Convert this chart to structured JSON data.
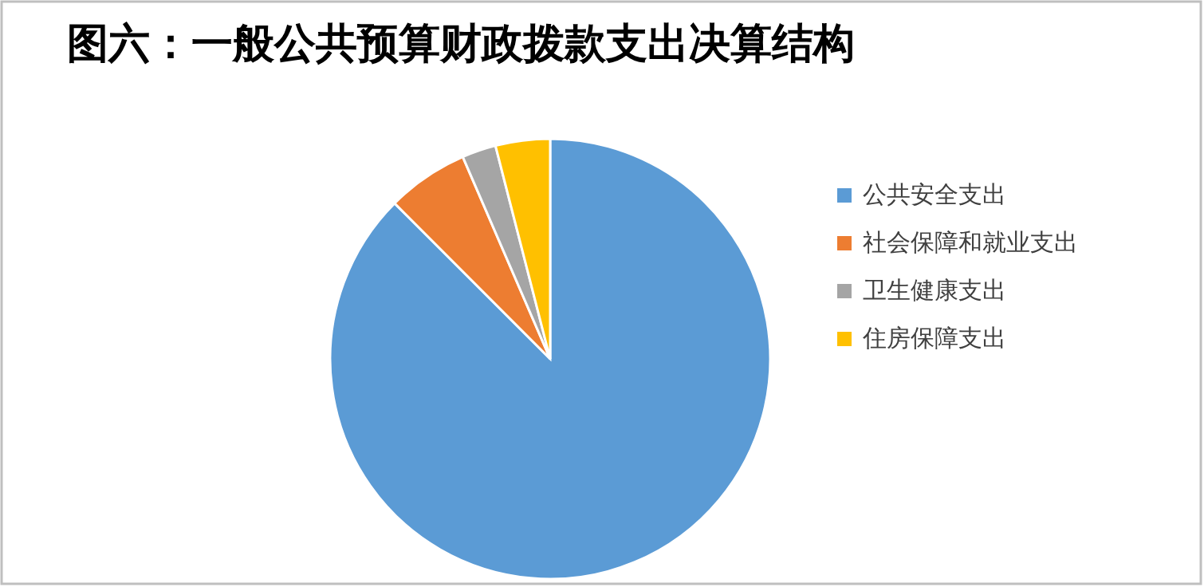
{
  "chart_data": {
    "type": "pie",
    "title": "图六：一般公共预算财政拨款支出决算结构",
    "categories": [
      "公共安全支出",
      "社会保障和就业支出",
      "卫生健康支出",
      "住房保障支出"
    ],
    "values": [
      87.5,
      6,
      2.5,
      4
    ],
    "colors": [
      "#5b9bd5",
      "#ed7d31",
      "#a5a5a5",
      "#ffc000"
    ],
    "legend": "right"
  }
}
